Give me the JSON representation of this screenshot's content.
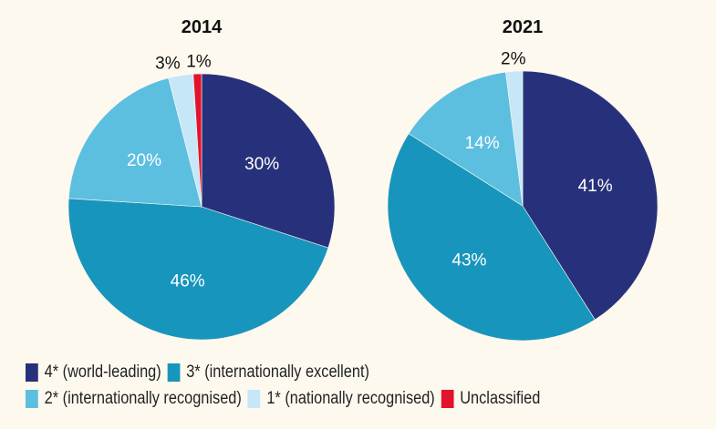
{
  "chart_data": [
    {
      "type": "pie",
      "title": "2014",
      "categories": [
        "4* (world-leading)",
        "3* (internationally excellent)",
        "2* (internationally recognised)",
        "1* (nationally recognised)",
        "Unclassified"
      ],
      "values": [
        30,
        46,
        20,
        3,
        1
      ],
      "labels": [
        "30%",
        "46%",
        "20%",
        "3%",
        "1%"
      ]
    },
    {
      "type": "pie",
      "title": "2021",
      "categories": [
        "4* (world-leading)",
        "3* (internationally excellent)",
        "2* (internationally recognised)",
        "1* (nationally recognised)",
        "Unclassified"
      ],
      "values": [
        41,
        43,
        14,
        2,
        0
      ],
      "labels": [
        "41%",
        "43%",
        "14%",
        "2%",
        ""
      ]
    }
  ],
  "colors": [
    "#27317b",
    "#1895bc",
    "#5cbfe0",
    "#c6e7f8",
    "#e2132c"
  ],
  "legend": {
    "placement": "bottom",
    "items": [
      "4* (world-leading)",
      "3* (internationally excellent)",
      "2* (internationally recognised)",
      "1* (nationally recognised)",
      "Unclassified"
    ]
  }
}
